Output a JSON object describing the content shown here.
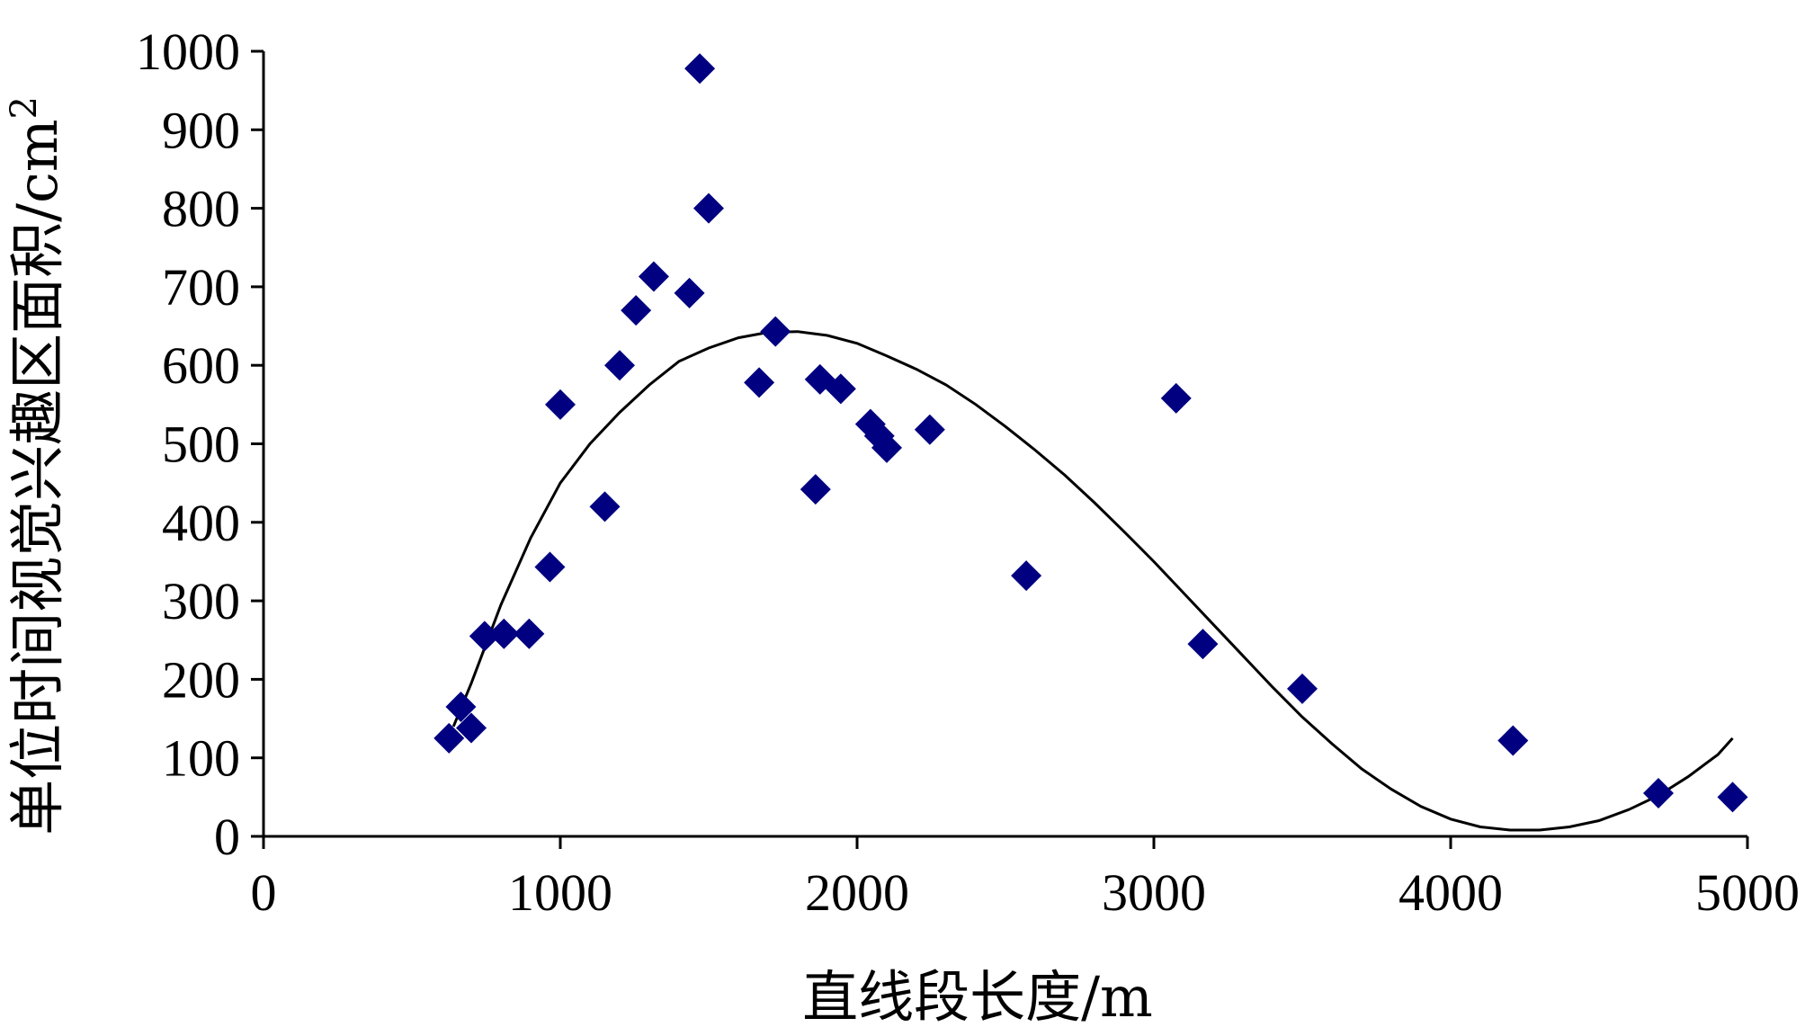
{
  "chart_data": {
    "type": "scatter",
    "xlabel": "直线段长度/m",
    "ylabel_main": "单位时间视觉兴趣区面积/cm",
    "ylabel_sup": "2",
    "xlim": [
      0,
      5000
    ],
    "ylim": [
      0,
      1000
    ],
    "x_ticks": [
      "0",
      "1000",
      "2000",
      "3000",
      "4000",
      "5000"
    ],
    "y_ticks": [
      "0",
      "100",
      "200",
      "300",
      "400",
      "500",
      "600",
      "700",
      "800",
      "900",
      "1000"
    ],
    "grid": false,
    "legend": "none",
    "marker_color": "#000080",
    "line_color": "#000000",
    "points": [
      {
        "x": 625,
        "y": 125
      },
      {
        "x": 665,
        "y": 165
      },
      {
        "x": 700,
        "y": 138
      },
      {
        "x": 745,
        "y": 255
      },
      {
        "x": 810,
        "y": 258
      },
      {
        "x": 895,
        "y": 258
      },
      {
        "x": 965,
        "y": 343
      },
      {
        "x": 1000,
        "y": 550
      },
      {
        "x": 1150,
        "y": 420
      },
      {
        "x": 1200,
        "y": 600
      },
      {
        "x": 1255,
        "y": 670
      },
      {
        "x": 1315,
        "y": 713
      },
      {
        "x": 1435,
        "y": 692
      },
      {
        "x": 1470,
        "y": 978
      },
      {
        "x": 1500,
        "y": 800
      },
      {
        "x": 1670,
        "y": 578
      },
      {
        "x": 1725,
        "y": 643
      },
      {
        "x": 1860,
        "y": 442
      },
      {
        "x": 1875,
        "y": 582
      },
      {
        "x": 1945,
        "y": 570
      },
      {
        "x": 2045,
        "y": 525
      },
      {
        "x": 2075,
        "y": 510
      },
      {
        "x": 2100,
        "y": 495
      },
      {
        "x": 2245,
        "y": 518
      },
      {
        "x": 2570,
        "y": 332
      },
      {
        "x": 3075,
        "y": 558
      },
      {
        "x": 3165,
        "y": 245
      },
      {
        "x": 3500,
        "y": 188
      },
      {
        "x": 4210,
        "y": 122
      },
      {
        "x": 4700,
        "y": 55
      },
      {
        "x": 4950,
        "y": 50
      }
    ],
    "fit_line": [
      {
        "x": 640,
        "y": 140
      },
      {
        "x": 700,
        "y": 195
      },
      {
        "x": 800,
        "y": 295
      },
      {
        "x": 900,
        "y": 380
      },
      {
        "x": 1000,
        "y": 450
      },
      {
        "x": 1100,
        "y": 500
      },
      {
        "x": 1200,
        "y": 540
      },
      {
        "x": 1300,
        "y": 575
      },
      {
        "x": 1400,
        "y": 605
      },
      {
        "x": 1500,
        "y": 622
      },
      {
        "x": 1600,
        "y": 635
      },
      {
        "x": 1700,
        "y": 642
      },
      {
        "x": 1800,
        "y": 643
      },
      {
        "x": 1900,
        "y": 638
      },
      {
        "x": 2000,
        "y": 628
      },
      {
        "x": 2100,
        "y": 612
      },
      {
        "x": 2200,
        "y": 595
      },
      {
        "x": 2300,
        "y": 575
      },
      {
        "x": 2400,
        "y": 550
      },
      {
        "x": 2500,
        "y": 522
      },
      {
        "x": 2600,
        "y": 492
      },
      {
        "x": 2700,
        "y": 460
      },
      {
        "x": 2800,
        "y": 425
      },
      {
        "x": 2900,
        "y": 388
      },
      {
        "x": 3000,
        "y": 350
      },
      {
        "x": 3100,
        "y": 310
      },
      {
        "x": 3200,
        "y": 270
      },
      {
        "x": 3300,
        "y": 230
      },
      {
        "x": 3400,
        "y": 190
      },
      {
        "x": 3500,
        "y": 152
      },
      {
        "x": 3600,
        "y": 118
      },
      {
        "x": 3700,
        "y": 86
      },
      {
        "x": 3800,
        "y": 60
      },
      {
        "x": 3900,
        "y": 38
      },
      {
        "x": 4000,
        "y": 22
      },
      {
        "x": 4100,
        "y": 12
      },
      {
        "x": 4200,
        "y": 8
      },
      {
        "x": 4300,
        "y": 8
      },
      {
        "x": 4400,
        "y": 12
      },
      {
        "x": 4500,
        "y": 20
      },
      {
        "x": 4600,
        "y": 34
      },
      {
        "x": 4700,
        "y": 52
      },
      {
        "x": 4800,
        "y": 76
      },
      {
        "x": 4900,
        "y": 104
      },
      {
        "x": 4950,
        "y": 125
      }
    ]
  }
}
